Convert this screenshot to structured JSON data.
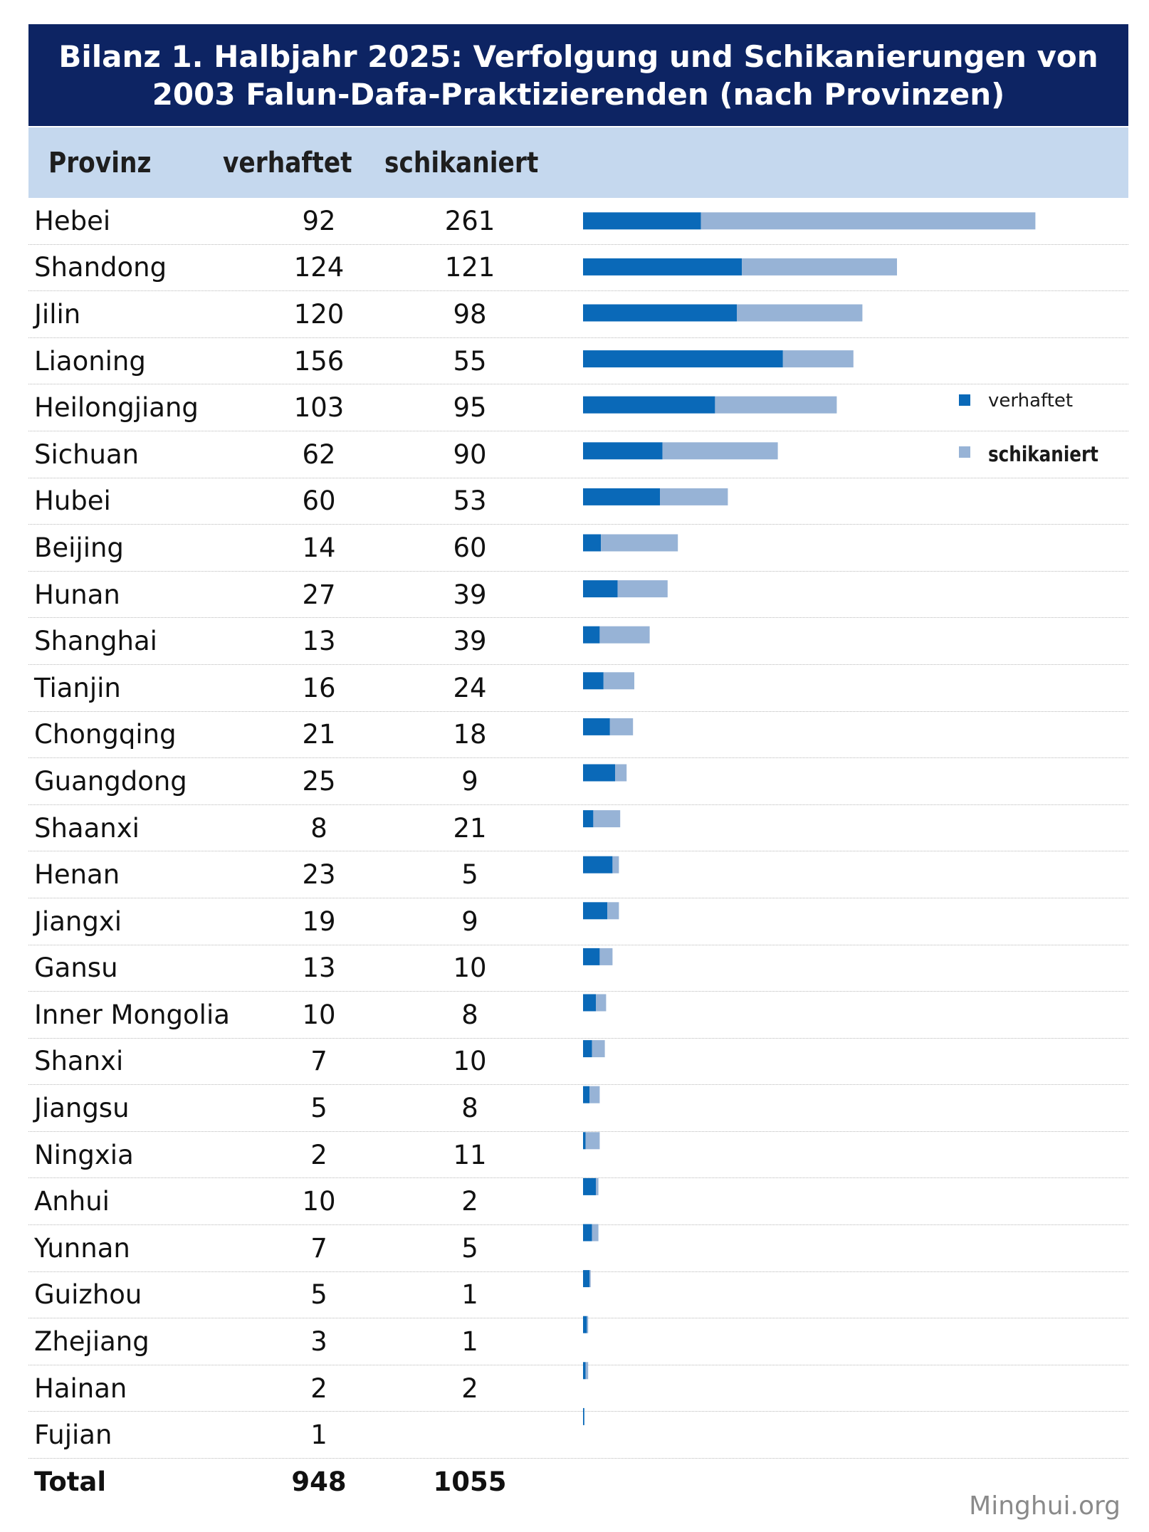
{
  "title": {
    "line1": "Bilanz 1. Halbjahr 2025: Verfolgung und Schikanierungen von",
    "line2": "2003 Falun-Dafa-Praktizierenden (nach Provinzen)"
  },
  "table": {
    "headers": {
      "province": "Provinz",
      "arrested": "verhaftet",
      "harassed": "schikaniert"
    },
    "rows": [
      {
        "province": "Hebei",
        "arrested": "92",
        "harassed": "261"
      },
      {
        "province": "Shandong",
        "arrested": "124",
        "harassed": "121"
      },
      {
        "province": "Jilin",
        "arrested": "120",
        "harassed": "98"
      },
      {
        "province": "Liaoning",
        "arrested": "156",
        "harassed": "55"
      },
      {
        "province": "Heilongjiang",
        "arrested": "103",
        "harassed": "95"
      },
      {
        "province": "Sichuan",
        "arrested": "62",
        "harassed": "90"
      },
      {
        "province": "Hubei",
        "arrested": "60",
        "harassed": "53"
      },
      {
        "province": "Beijing",
        "arrested": "14",
        "harassed": "60"
      },
      {
        "province": "Hunan",
        "arrested": "27",
        "harassed": "39"
      },
      {
        "province": "Shanghai",
        "arrested": "13",
        "harassed": "39"
      },
      {
        "province": "Tianjin",
        "arrested": "16",
        "harassed": "24"
      },
      {
        "province": "Chongqing",
        "arrested": "21",
        "harassed": "18"
      },
      {
        "province": "Guangdong",
        "arrested": "25",
        "harassed": "9"
      },
      {
        "province": "Shaanxi",
        "arrested": "8",
        "harassed": "21"
      },
      {
        "province": "Henan",
        "arrested": "23",
        "harassed": "5"
      },
      {
        "province": "Jiangxi",
        "arrested": "19",
        "harassed": "9"
      },
      {
        "province": "Gansu",
        "arrested": "13",
        "harassed": "10"
      },
      {
        "province": "Inner Mongolia",
        "arrested": "10",
        "harassed": "8"
      },
      {
        "province": "Shanxi",
        "arrested": "7",
        "harassed": "10"
      },
      {
        "province": "Jiangsu",
        "arrested": "5",
        "harassed": "8"
      },
      {
        "province": "Ningxia",
        "arrested": "2",
        "harassed": "11"
      },
      {
        "province": "Anhui",
        "arrested": "10",
        "harassed": "2"
      },
      {
        "province": "Yunnan",
        "arrested": "7",
        "harassed": "5"
      },
      {
        "province": "Guizhou",
        "arrested": "5",
        "harassed": "1"
      },
      {
        "province": "Zhejiang",
        "arrested": "3",
        "harassed": "1"
      },
      {
        "province": "Hainan",
        "arrested": "2",
        "harassed": "2"
      },
      {
        "province": "Fujian",
        "arrested": "1",
        "harassed": ""
      }
    ],
    "total": {
      "label": "Total",
      "arrested": "948",
      "harassed": "1055"
    }
  },
  "legend": {
    "arrested": "verhaftet",
    "harassed": "schikaniert"
  },
  "watermark": "Minghui.org",
  "colors": {
    "title_bg": "#0d2463",
    "header_bg": "#c5d8ee",
    "arrested": "#0a69b8",
    "harassed": "#97b3d6"
  },
  "chart_data": {
    "type": "bar",
    "orientation": "horizontal",
    "stacked": true,
    "categories": [
      "Hebei",
      "Shandong",
      "Jilin",
      "Liaoning",
      "Heilongjiang",
      "Sichuan",
      "Hubei",
      "Beijing",
      "Hunan",
      "Shanghai",
      "Tianjin",
      "Chongqing",
      "Guangdong",
      "Shaanxi",
      "Henan",
      "Jiangxi",
      "Gansu",
      "Inner Mongolia",
      "Shanxi",
      "Jiangsu",
      "Ningxia",
      "Anhui",
      "Yunnan",
      "Guizhou",
      "Zhejiang",
      "Hainan",
      "Fujian"
    ],
    "series": [
      {
        "name": "verhaftet",
        "color": "#0a69b8",
        "values": [
          92,
          124,
          120,
          156,
          103,
          62,
          60,
          14,
          27,
          13,
          16,
          21,
          25,
          8,
          23,
          19,
          13,
          10,
          7,
          5,
          2,
          10,
          7,
          5,
          3,
          2,
          1
        ]
      },
      {
        "name": "schikaniert",
        "color": "#97b3d6",
        "values": [
          261,
          121,
          98,
          55,
          95,
          90,
          53,
          60,
          39,
          39,
          24,
          18,
          9,
          21,
          5,
          9,
          10,
          8,
          10,
          8,
          11,
          2,
          5,
          1,
          1,
          2,
          0
        ]
      }
    ],
    "grid": false,
    "legend_position": "right"
  }
}
